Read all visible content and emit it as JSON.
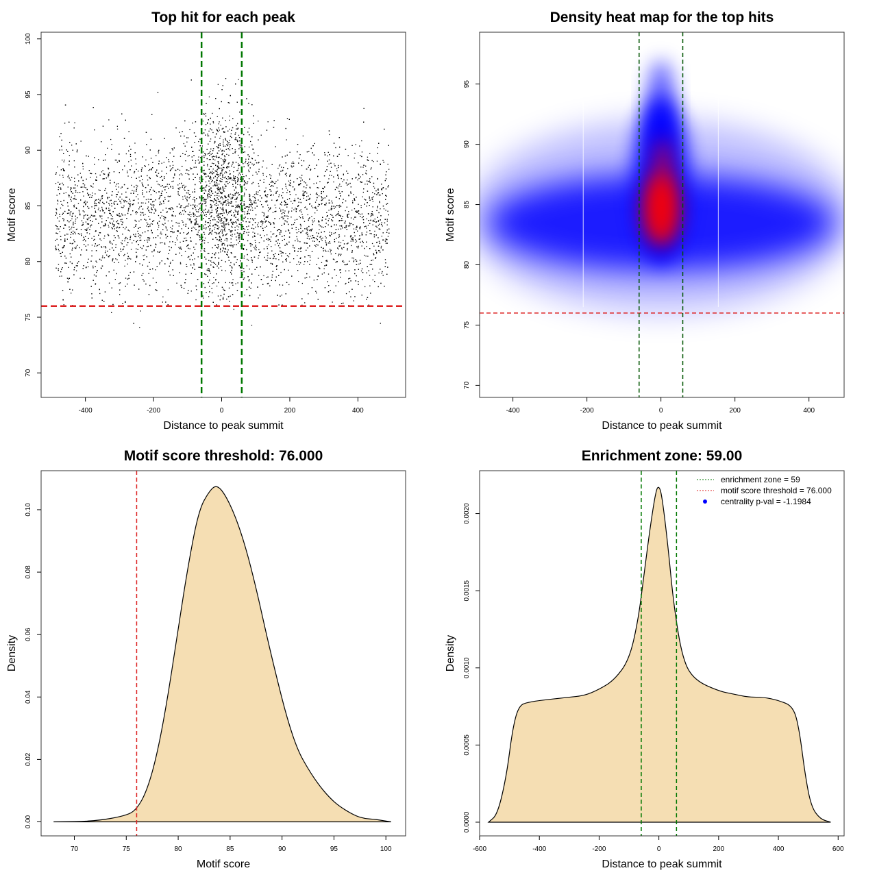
{
  "chart_data": [
    {
      "type": "scatter",
      "title": "Top hit for each peak",
      "xlabel": "Distance to peak summit",
      "ylabel": "Motif score",
      "xlim": [
        -530,
        540
      ],
      "ylim": [
        67.8,
        100.6
      ],
      "xticks": [
        -400,
        -200,
        0,
        200,
        400
      ],
      "yticks": [
        70,
        75,
        80,
        85,
        90,
        95,
        100
      ],
      "hlines": [
        {
          "y": 76,
          "color": "#dd2222"
        }
      ],
      "vlines": [
        {
          "x": -59,
          "color": "#007700"
        },
        {
          "x": 59,
          "color": "#007700"
        }
      ],
      "points_summary": {
        "n_drawn": 7000,
        "x_range": [
          -490,
          490
        ],
        "flank_score_mean": 84,
        "flank_score_sd": 3.4,
        "center_score_mean": 86.5,
        "center_score_sd": 4,
        "center_x_sd": 45,
        "center_fraction": 0.18
      },
      "point_color": "#000000"
    },
    {
      "type": "heatmap",
      "title": "Density heat map for the top hits",
      "xlabel": "Distance to peak summit",
      "ylabel": "Motif score",
      "xlim": [
        -490,
        495
      ],
      "ylim": [
        69,
        99.3
      ],
      "xticks": [
        -400,
        -200,
        0,
        200,
        400
      ],
      "yticks": [
        70,
        75,
        80,
        85,
        90,
        95
      ],
      "hlines": [
        {
          "y": 76,
          "color": "#dd2222"
        }
      ],
      "vlines": [
        {
          "x": -59,
          "color": "#005500"
        },
        {
          "x": 59,
          "color": "#005500"
        }
      ],
      "colors": {
        "low": "#ffffff",
        "mid": "#0000ff",
        "high": "#ff0000"
      }
    },
    {
      "type": "area",
      "title": "Motif score threshold: 76.000",
      "xlabel": "Motif score",
      "ylabel": "Density",
      "xlim": [
        66.8,
        101.9
      ],
      "ylim": [
        -0.0045,
        0.1125
      ],
      "xticks": [
        70,
        75,
        80,
        85,
        90,
        95,
        100
      ],
      "yticks": [
        0,
        0.02,
        0.04,
        0.06,
        0.08,
        0.1
      ],
      "ytick_labels": [
        "0.00",
        "0.02",
        "0.04",
        "0.06",
        "0.08",
        "0.10"
      ],
      "vlines": [
        {
          "x": 76,
          "color": "#dd2222"
        }
      ],
      "fill": "#f5deb3",
      "x": [
        68,
        72,
        75,
        76,
        77,
        78,
        79,
        80,
        81,
        82,
        83,
        83.7,
        84.5,
        85.5,
        86.5,
        87.5,
        88.5,
        89.5,
        90.5,
        91.5,
        92.5,
        93.5,
        94.5,
        95.5,
        97,
        98,
        99,
        100.5
      ],
      "y": [
        0,
        0.0002,
        0.002,
        0.004,
        0.01,
        0.022,
        0.04,
        0.062,
        0.083,
        0.1,
        0.106,
        0.108,
        0.105,
        0.098,
        0.088,
        0.075,
        0.06,
        0.046,
        0.033,
        0.023,
        0.017,
        0.012,
        0.008,
        0.005,
        0.002,
        0.001,
        0.0008,
        0
      ]
    },
    {
      "type": "area",
      "title": "Enrichment zone: 59.00",
      "xlabel": "Distance to peak summit",
      "ylabel": "Density",
      "xlim": [
        -600,
        620
      ],
      "ylim": [
        -8.89e-05,
        0.0022778
      ],
      "xticks": [
        -600,
        -400,
        -200,
        0,
        200,
        400,
        600
      ],
      "yticks": [
        0,
        0.0005,
        0.001,
        0.0015,
        0.002
      ],
      "ytick_labels": [
        "0.0000",
        "0.0005",
        "0.0010",
        "0.0015",
        "0.0020"
      ],
      "vlines": [
        {
          "x": -59,
          "color": "#007700"
        },
        {
          "x": 59,
          "color": "#007700"
        }
      ],
      "fill": "#f5deb3",
      "x": [
        -570,
        -540,
        -510,
        -490,
        -470,
        -440,
        -300,
        -250,
        -200,
        -150,
        -100,
        -70,
        -50,
        -30,
        -10,
        0,
        10,
        30,
        50,
        80,
        120,
        200,
        250,
        300,
        350,
        400,
        450,
        470,
        490,
        510,
        540,
        575
      ],
      "y": [
        0,
        5e-05,
        0.0003,
        0.0006,
        0.00075,
        0.00078,
        0.00081,
        0.00082,
        0.00086,
        0.00092,
        0.00105,
        0.0013,
        0.0016,
        0.0019,
        0.00215,
        0.00218,
        0.00212,
        0.0018,
        0.0014,
        0.00105,
        0.00092,
        0.00085,
        0.00083,
        0.00081,
        0.00081,
        0.00079,
        0.00075,
        0.0006,
        0.0003,
        0.0001,
        2e-05,
        0
      ],
      "legend": {
        "position": "top-right",
        "entries": [
          {
            "label": "enrichment zone = 59",
            "color": "#007700",
            "style": "dotted"
          },
          {
            "label": "motif score threshold = 76.000",
            "color": "#dd2222",
            "style": "dotted"
          },
          {
            "label": "centrality p-val = -1.1984",
            "color": "#0000ff",
            "style": "point"
          }
        ]
      }
    }
  ]
}
